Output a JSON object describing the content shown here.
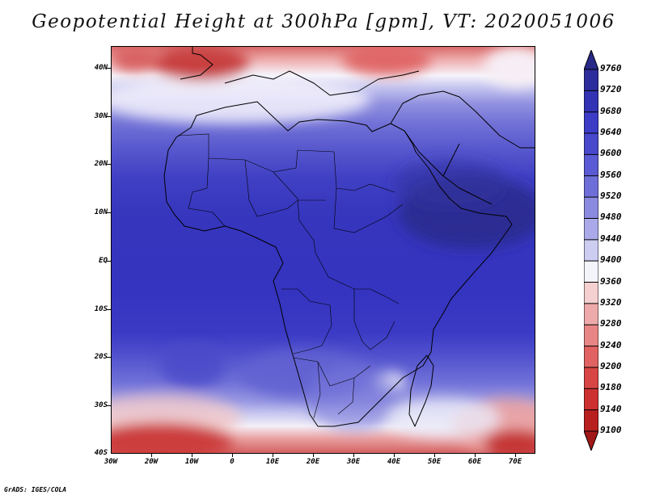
{
  "title": "Geopotential Height at 300hPa [gpm], VT: 2020051006",
  "footer": "GrADS: IGES/COLA",
  "map": {
    "variable": "Geopotential Height at 300hPa",
    "units": "gpm",
    "valid_time": "2020051006",
    "lon_range": [
      -30,
      75
    ],
    "lat_range": [
      -40,
      45
    ],
    "lat_labels": [
      "40N",
      "30N",
      "20N",
      "10N",
      "EQ",
      "10S",
      "20S",
      "30S",
      "40S"
    ],
    "lon_labels": [
      "30W",
      "20W",
      "10W",
      "0",
      "10E",
      "20E",
      "30E",
      "40E",
      "50E",
      "60E",
      "70E"
    ]
  },
  "colorbar": {
    "levels": [
      "9760",
      "9720",
      "9680",
      "9640",
      "9600",
      "9560",
      "9520",
      "9480",
      "9440",
      "9400",
      "9360",
      "9320",
      "9280",
      "9240",
      "9200",
      "9180",
      "9140",
      "9100"
    ],
    "colors": [
      "#282887",
      "#2c2c9c",
      "#3232b4",
      "#3c3cc6",
      "#4848cd",
      "#5a5ad4",
      "#6e6ed9",
      "#8a8ae0",
      "#aaaaea",
      "#cdcdf2",
      "#f4f4fb",
      "#f4d0d0",
      "#eeaaaa",
      "#e88686",
      "#e06262",
      "#d84545",
      "#cc3030",
      "#b82020",
      "#a01818"
    ]
  }
}
